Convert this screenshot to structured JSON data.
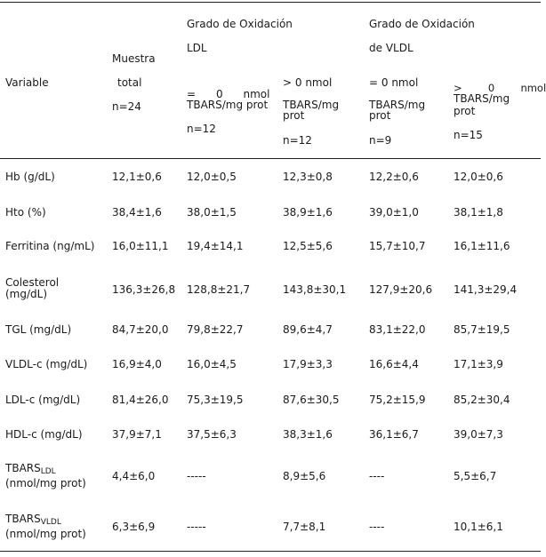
{
  "header": {
    "variable": "Variable",
    "muestra": [
      "Muestra",
      "total",
      "n=24"
    ],
    "ldl_group": [
      "Grado de Oxidación",
      "LDL"
    ],
    "vldl_group": [
      "Grado de Oxidación",
      "de VLDL"
    ],
    "ldl_eq": [
      "=      0      nmol",
      "TBARS/mg prot",
      "n=12"
    ],
    "ldl_gt": [
      "> 0 nmol",
      "TBARS/mg",
      "prot",
      "n=12"
    ],
    "vldl_eq": [
      "= 0 nmol",
      "TBARS/mg",
      "prot",
      "n=9"
    ],
    "vldl_gt": [
      ">        0        nmol",
      "TBARS/mg",
      "prot",
      "n=15"
    ]
  },
  "rows": [
    {
      "label": [
        "Hb (g/dL)"
      ],
      "cells": [
        "12,1±0,6",
        "12,0±0,5",
        "12,3±0,8",
        "12,2±0,6",
        "12,0±0,6"
      ]
    },
    {
      "label": [
        "Hto (%)"
      ],
      "cells": [
        "38,4±1,6",
        "38,0±1,5",
        "38,9±1,6",
        "39,0±1,0",
        "38,1±1,8"
      ]
    },
    {
      "label": [
        "Ferritina (ng/mL)"
      ],
      "cells": [
        "16,0±11,1",
        "19,4±14,1",
        "12,5±5,6",
        "15,7±10,7",
        "16,1±11,6"
      ]
    },
    {
      "label": [
        "Colesterol",
        "(mg/dL)"
      ],
      "cells": [
        "136,3±26,8",
        "128,8±21,7",
        "143,8±30,1",
        "127,9±20,6",
        "141,3±29,4"
      ]
    },
    {
      "label": [
        "TGL (mg/dL)"
      ],
      "cells": [
        "84,7±20,0",
        "79,8±22,7",
        "89,6±4,7",
        "83,1±22,0",
        "85,7±19,5"
      ]
    },
    {
      "label": [
        "VLDL-c (mg/dL)"
      ],
      "cells": [
        "16,9±4,0",
        "16,0±4,5",
        "17,9±3,3",
        "16,6±4,4",
        "17,1±3,9"
      ]
    },
    {
      "label": [
        "LDL-c (mg/dL)"
      ],
      "cells": [
        "81,4±26,0",
        "75,3±19,5",
        "87,6±30,5",
        "75,2±15,9",
        "85,2±30,4"
      ]
    },
    {
      "label": [
        "HDL-c (mg/dL)"
      ],
      "cells": [
        "37,9±7,1",
        "37,5±6,3",
        "38,3±1,6",
        "36,1±6,7",
        "39,0±7,3"
      ]
    },
    {
      "label_base": "TBARS",
      "label_sub": "LDL",
      "label2": "(nmol/mg prot)",
      "cells": [
        "4,4±6,0",
        "-----",
        "8,9±5,6",
        "----",
        "5,5±6,7"
      ]
    },
    {
      "label_base": "TBARS",
      "label_sub": "VLDL",
      "label2": "(nmol/mg prot)",
      "cells": [
        "6,3±6,9",
        "-----",
        "7,7±8,1",
        "----",
        "10,1±6,1"
      ]
    }
  ]
}
